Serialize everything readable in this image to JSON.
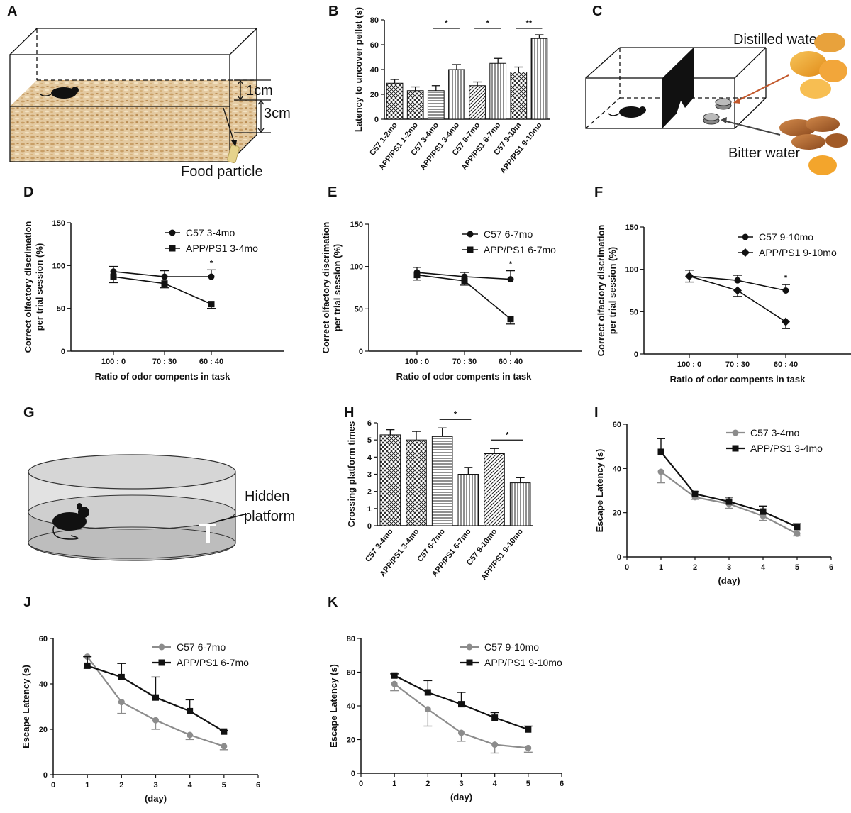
{
  "panel_labels": [
    "A",
    "B",
    "C",
    "D",
    "E",
    "F",
    "G",
    "H",
    "I",
    "J",
    "K"
  ],
  "illustrations": {
    "A": {
      "dim_small": "1cm",
      "dim_large": "3cm",
      "food_label": "Food particle"
    },
    "C": {
      "top_label": "Distilled water",
      "bottom_label": "Bitter water"
    },
    "G": {
      "label_line1": "Hidden",
      "label_line2": "platform"
    }
  },
  "chart_data": [
    {
      "id": "B",
      "type": "bar",
      "ylabel": "Latency to uncover pellet (s)",
      "xlabel": "",
      "ylim": [
        0,
        80
      ],
      "yticks": [
        0,
        20,
        40,
        60,
        80
      ],
      "categories": [
        "C57 1-2mo",
        "APP/PS1 1-2mo",
        "C57 3-4mo",
        "APP/PS1 3-4mo",
        "C57 6-7mo",
        "APP/PS1 6-7mo",
        "C57 9-10m",
        "APP/PS1 9-10mo"
      ],
      "values": [
        29,
        23,
        23,
        40,
        27,
        45,
        38,
        65
      ],
      "errors": [
        3,
        3,
        4,
        4,
        3,
        4,
        4,
        3
      ],
      "patterns": [
        "cross",
        "cross",
        "hline",
        "vline",
        "hatch",
        "vline",
        "cross",
        "vline"
      ],
      "significance": [
        {
          "from": 2,
          "to": 3,
          "label": "*"
        },
        {
          "from": 4,
          "to": 5,
          "label": "*"
        },
        {
          "from": 6,
          "to": 7,
          "label": "**"
        }
      ]
    },
    {
      "id": "D",
      "type": "line",
      "ylabel": "Correct olfactory discrimation per trial session (%)",
      "xlabel": "Ratio of odor compents in task",
      "ylim": [
        0,
        150
      ],
      "yticks": [
        0,
        50,
        100,
        150
      ],
      "categories": [
        "100 : 0",
        "70 : 30",
        "60 : 40"
      ],
      "series": [
        {
          "name": "C57 3-4mo",
          "marker": "circle",
          "color": "#111111",
          "values": [
            93,
            87,
            87
          ],
          "errors": [
            6,
            7,
            8
          ]
        },
        {
          "name": "APP/PS1 3-4mo",
          "marker": "square",
          "color": "#111111",
          "values": [
            87,
            79,
            55
          ],
          "errors": [
            7,
            5,
            5
          ]
        }
      ],
      "annotations": [
        {
          "category": 2,
          "label": "*"
        }
      ]
    },
    {
      "id": "E",
      "type": "line",
      "ylabel": "Correct olfactory discrimation per trial session (%)",
      "xlabel": "Ratio of odor compents in task",
      "ylim": [
        0,
        150
      ],
      "yticks": [
        0,
        50,
        100,
        150
      ],
      "categories": [
        "100 : 0",
        "70 : 30",
        "60 : 40"
      ],
      "series": [
        {
          "name": "C57 6-7mo",
          "marker": "circle",
          "color": "#111111",
          "values": [
            93,
            88,
            85
          ],
          "errors": [
            6,
            5,
            10
          ]
        },
        {
          "name": "APP/PS1 6-7mo",
          "marker": "square",
          "color": "#111111",
          "values": [
            90,
            83,
            38
          ],
          "errors": [
            6,
            5,
            6
          ]
        }
      ],
      "annotations": [
        {
          "category": 2,
          "label": "*"
        }
      ]
    },
    {
      "id": "F",
      "type": "line",
      "ylabel": "Correct olfactory discrimation per trial session (%)",
      "xlabel": "Ratio of odor compents in task",
      "ylim": [
        0,
        150
      ],
      "yticks": [
        0,
        50,
        100,
        150
      ],
      "categories": [
        "100 : 0",
        "70 : 30",
        "60 : 40"
      ],
      "series": [
        {
          "name": "C57 9-10mo",
          "marker": "circle",
          "color": "#111111",
          "values": [
            92,
            87,
            75
          ],
          "errors": [
            7,
            6,
            7
          ]
        },
        {
          "name": "APP/PS1 9-10mo",
          "marker": "diamond",
          "color": "#111111",
          "values": [
            92,
            75,
            38
          ],
          "errors": [
            7,
            7,
            8
          ]
        }
      ],
      "annotations": [
        {
          "category": 2,
          "label": "*"
        }
      ]
    },
    {
      "id": "H",
      "type": "bar",
      "ylabel": "Crossing platform times",
      "xlabel": "",
      "ylim": [
        0,
        6
      ],
      "yticks": [
        0,
        1,
        2,
        3,
        4,
        5,
        6
      ],
      "categories": [
        "C57 3-4mo",
        "APP/PS1 3-4mo",
        "C57 6-7mo",
        "APP/PS1 6-7mo",
        "C57 9-10mo",
        "APP/PS1 9-10mo"
      ],
      "values": [
        5.3,
        5.0,
        5.2,
        3.0,
        4.2,
        2.5
      ],
      "errors": [
        0.3,
        0.5,
        0.5,
        0.4,
        0.3,
        0.3
      ],
      "patterns": [
        "cross",
        "cross",
        "hline",
        "vline",
        "hatch",
        "vline"
      ],
      "significance": [
        {
          "from": 2,
          "to": 3,
          "label": "*"
        },
        {
          "from": 4,
          "to": 5,
          "label": "*"
        }
      ]
    },
    {
      "id": "I",
      "type": "line",
      "ylabel": "Escape Latency (s)",
      "xlabel": "(day)",
      "xlim": [
        0,
        6
      ],
      "xticks": [
        0,
        1,
        2,
        3,
        4,
        5,
        6
      ],
      "ylim": [
        0,
        60
      ],
      "yticks": [
        0,
        20,
        40,
        60
      ],
      "x": [
        1,
        2,
        3,
        4,
        5
      ],
      "series": [
        {
          "name": "C57 3-4mo",
          "marker": "circle",
          "color": "#8c8c8c",
          "values": [
            38.5,
            27,
            24,
            18.5,
            10.5
          ],
          "errors": [
            5,
            1,
            2,
            2,
            1
          ]
        },
        {
          "name": "APP/PS1 3-4mo",
          "marker": "square",
          "color": "#111111",
          "values": [
            47.5,
            28.5,
            25,
            20.5,
            13.5
          ],
          "errors": [
            6,
            1,
            2,
            2.5,
            1.5
          ]
        }
      ]
    },
    {
      "id": "J",
      "type": "line",
      "ylabel": "Escape Latency (s)",
      "xlabel": "(day)",
      "xlim": [
        0,
        6
      ],
      "xticks": [
        0,
        1,
        2,
        3,
        4,
        5,
        6
      ],
      "ylim": [
        0,
        60
      ],
      "yticks": [
        0,
        20,
        40,
        60
      ],
      "x": [
        1,
        2,
        3,
        4,
        5
      ],
      "series": [
        {
          "name": "C57 6-7mo",
          "marker": "circle",
          "color": "#8c8c8c",
          "values": [
            52,
            32,
            24,
            17.5,
            12.5
          ],
          "errors": [
            5,
            5,
            4,
            2,
            1.5
          ]
        },
        {
          "name": "APP/PS1 6-7mo",
          "marker": "square",
          "color": "#111111",
          "values": [
            48,
            43,
            34,
            28,
            19
          ],
          "errors": [
            4,
            6,
            9,
            5,
            0.5
          ]
        }
      ]
    },
    {
      "id": "K",
      "type": "line",
      "ylabel": "Escape Latency (s)",
      "xlabel": "(day)",
      "xlim": [
        0,
        6
      ],
      "xticks": [
        0,
        1,
        2,
        3,
        4,
        5,
        6
      ],
      "ylim": [
        0,
        80
      ],
      "yticks": [
        0,
        20,
        40,
        60,
        80
      ],
      "x": [
        1,
        2,
        3,
        4,
        5
      ],
      "series": [
        {
          "name": "C57 9-10mo",
          "marker": "circle",
          "color": "#8c8c8c",
          "values": [
            53,
            38,
            24,
            17,
            15
          ],
          "errors": [
            4,
            10,
            5,
            5,
            2.5
          ]
        },
        {
          "name": "APP/PS1 9-10mo",
          "marker": "square",
          "color": "#111111",
          "values": [
            58,
            48,
            41,
            33,
            26
          ],
          "errors": [
            1,
            7,
            7,
            3,
            2
          ]
        }
      ]
    }
  ]
}
